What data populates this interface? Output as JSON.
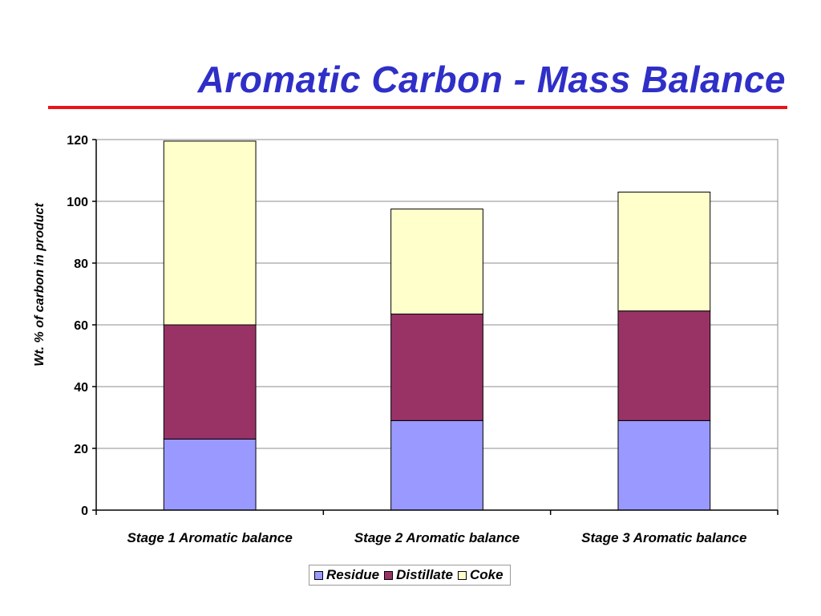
{
  "slide": {
    "title": "Aromatic Carbon - Mass Balance",
    "title_color": "#2f2fc8",
    "rule_color": "#e8141c"
  },
  "chart_data": {
    "type": "bar",
    "stacked": true,
    "categories": [
      "Stage 1 Aromatic balance",
      "Stage 2 Aromatic balance",
      "Stage 3 Aromatic balance"
    ],
    "series": [
      {
        "name": "Residue",
        "values": [
          23,
          29,
          29
        ],
        "color": "#9999ff"
      },
      {
        "name": "Distillate",
        "values": [
          37,
          34.5,
          35.5
        ],
        "color": "#993366"
      },
      {
        "name": "Coke",
        "values": [
          59.5,
          34,
          38.5
        ],
        "color": "#ffffcc"
      }
    ],
    "title": "",
    "xlabel": "",
    "ylabel": "Wt. % of carbon in product",
    "ylim": [
      0,
      120
    ],
    "yticks": [
      0,
      20,
      40,
      60,
      80,
      100,
      120
    ],
    "grid": true,
    "legend_position": "bottom"
  }
}
